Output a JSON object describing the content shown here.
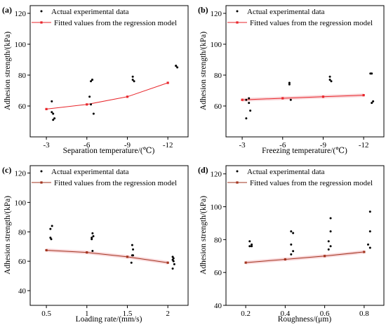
{
  "colors": {
    "fit": "#e8262b",
    "fit_dark": "#a2341f",
    "band": "#f7c8cc",
    "points": "#000000"
  },
  "chart_data": [
    {
      "panel": "(a)",
      "type": "scatter",
      "xlabel": "Separation temperature/(℃)",
      "ylabel": "Adhesion strength/(kPa)",
      "xlim": [
        -1.8,
        -13.5
      ],
      "ylim": [
        40,
        125
      ],
      "xticks": [
        -3,
        -6,
        -9,
        -12
      ],
      "xtick_labels": [
        "-3",
        "-6",
        "-9",
        "-12"
      ],
      "yticks": [
        60,
        80,
        100,
        120
      ],
      "ytick_labels": [
        "60",
        "80",
        "100",
        "120"
      ],
      "legend": [
        "Actual experimental data",
        "Fitted values from the regression model"
      ],
      "legend_position": "top-left",
      "fit_color": "red",
      "band": false,
      "series": [
        {
          "role": "scatter",
          "x": [
            -3.4,
            -3.4,
            -3.5,
            -3.5,
            -3.6,
            -6.2,
            -6.3,
            -6.4,
            -6.4,
            -6.5,
            -6.3,
            -9.4,
            -9.4,
            -9.5,
            -12.6,
            -12.7,
            -12.6
          ],
          "y": [
            63,
            56,
            55,
            51,
            52,
            66,
            76,
            77,
            77,
            55,
            61,
            79,
            77,
            76,
            86,
            85,
            86
          ]
        },
        {
          "role": "fit",
          "x": [
            -3,
            -6,
            -9,
            -12
          ],
          "y": [
            58,
            61,
            66,
            75
          ]
        }
      ]
    },
    {
      "panel": "(b)",
      "type": "scatter",
      "xlabel": "Freezing temperature/(℃)",
      "ylabel": "Adhesion strength/(kPa)",
      "xlim": [
        -1.8,
        -13.5
      ],
      "ylim": [
        40,
        125
      ],
      "xticks": [
        -3,
        -6,
        -9,
        -12
      ],
      "xtick_labels": [
        "-3",
        "-6",
        "-9",
        "-12"
      ],
      "yticks": [
        60,
        80,
        100,
        120
      ],
      "ytick_labels": [
        "60",
        "80",
        "100",
        "120"
      ],
      "legend": [
        "Actual experimental data",
        "Fitted values from the regression model"
      ],
      "legend_position": "top-left",
      "fit_color": "red",
      "band": true,
      "series": [
        {
          "role": "scatter",
          "x": [
            -3.3,
            -3.3,
            -3.5,
            -3.5,
            -3.6,
            -6.5,
            -6.5,
            -6.6,
            -9.5,
            -9.5,
            -9.6,
            -12.5,
            -12.6,
            -12.7,
            -12.6
          ],
          "y": [
            64,
            52,
            65,
            62,
            57,
            74,
            75,
            64,
            79,
            77,
            76,
            81,
            81,
            63,
            62
          ]
        },
        {
          "role": "fit",
          "x": [
            -3,
            -6,
            -9,
            -12
          ],
          "y": [
            64,
            65,
            66,
            67
          ]
        }
      ]
    },
    {
      "panel": "(c)",
      "type": "scatter",
      "xlabel": "Loading rate/(mm/s)",
      "ylabel": "Adhesion strength/(kPa)",
      "xlim": [
        0.3,
        2.25
      ],
      "ylim": [
        30,
        125
      ],
      "xticks": [
        0.5,
        1.0,
        1.5,
        2.0
      ],
      "xtick_labels": [
        "0.5",
        "1",
        "1.5",
        "2"
      ],
      "yticks": [
        40,
        60,
        80,
        100,
        120
      ],
      "ytick_labels": [
        "40",
        "60",
        "80",
        "100",
        "120"
      ],
      "legend": [
        "Actual experimental data",
        "Fitted values from the regression model"
      ],
      "legend_position": "top-left",
      "fit_color": "darkred",
      "band": true,
      "series": [
        {
          "role": "scatter",
          "x": [
            0.55,
            0.57,
            0.55,
            0.56,
            1.06,
            1.07,
            1.08,
            1.06,
            1.07,
            1.56,
            1.57,
            1.56,
            1.57,
            1.55,
            2.06,
            2.07,
            2.06,
            2.07,
            2.08,
            2.06
          ],
          "y": [
            82,
            84,
            76,
            75,
            76,
            79,
            77,
            75,
            67,
            71,
            68,
            64,
            64,
            59,
            63,
            62,
            61,
            60,
            58,
            55
          ]
        },
        {
          "role": "fit",
          "x": [
            0.5,
            1.0,
            1.5,
            2.0
          ],
          "y": [
            67.5,
            66,
            63,
            59
          ]
        }
      ]
    },
    {
      "panel": "(d)",
      "type": "scatter",
      "xlabel": "Roughness/(μm)",
      "ylabel": "Adhesion strength/(kPa)",
      "xlim": [
        0.1,
        0.9
      ],
      "ylim": [
        40,
        125
      ],
      "xticks": [
        0.2,
        0.4,
        0.6,
        0.8
      ],
      "xtick_labels": [
        "0.2",
        "0.4",
        "0.6",
        "0.8"
      ],
      "yticks": [
        40,
        60,
        80,
        100,
        120
      ],
      "ytick_labels": [
        "40",
        "60",
        "80",
        "100",
        "120"
      ],
      "legend": [
        "Actual experimental data",
        "Fitted values from the regression model"
      ],
      "legend_position": "top-left",
      "fit_color": "darkred",
      "band": true,
      "series": [
        {
          "role": "scatter",
          "x": [
            0.22,
            0.23,
            0.22,
            0.23,
            0.43,
            0.44,
            0.43,
            0.44,
            0.43,
            0.63,
            0.63,
            0.62,
            0.63,
            0.62,
            0.83,
            0.83,
            0.82,
            0.83
          ],
          "y": [
            79,
            77,
            76,
            76,
            85,
            84,
            77,
            73,
            71,
            93,
            85,
            79,
            76,
            74,
            97,
            85,
            77,
            75
          ]
        },
        {
          "role": "fit",
          "x": [
            0.2,
            0.4,
            0.6,
            0.8
          ],
          "y": [
            66,
            68,
            70,
            72.5
          ]
        }
      ]
    }
  ]
}
